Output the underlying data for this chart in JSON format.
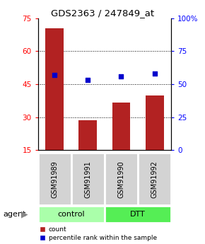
{
  "title": "GDS2363 / 247849_at",
  "samples": [
    "GSM91989",
    "GSM91991",
    "GSM91990",
    "GSM91992"
  ],
  "bar_values": [
    70.5,
    28.5,
    36.5,
    40.0
  ],
  "dot_values": [
    57,
    53,
    56,
    58
  ],
  "bar_color": "#b22222",
  "dot_color": "#0000cc",
  "ylim_left": [
    15,
    75
  ],
  "ylim_right": [
    0,
    100
  ],
  "yticks_left": [
    15,
    30,
    45,
    60,
    75
  ],
  "yticks_right": [
    0,
    25,
    50,
    75,
    100
  ],
  "ytick_labels_right": [
    "0",
    "25",
    "50",
    "75",
    "100%"
  ],
  "grid_lines": [
    30,
    45,
    60
  ],
  "control_color": "#aaffaa",
  "dtt_color": "#55ee55",
  "sample_box_color": "#d3d3d3",
  "legend_count_label": "count",
  "legend_pct_label": "percentile rank within the sample",
  "agent_label": "agent",
  "bar_width": 0.55
}
